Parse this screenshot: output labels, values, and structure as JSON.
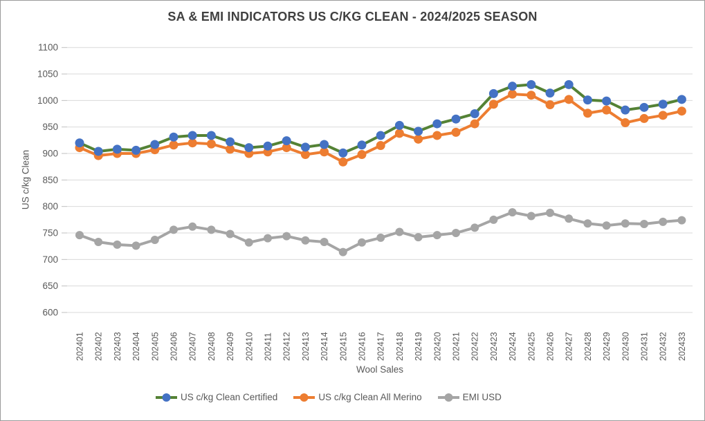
{
  "chart_data": {
    "type": "line",
    "title": "SA & EMI INDICATORS US C/KG CLEAN - 2024/2025 SEASON",
    "xlabel": "Wool Sales",
    "ylabel": "US c/kg Clean",
    "ylim": [
      600,
      1100
    ],
    "yticks": [
      600,
      650,
      700,
      750,
      800,
      850,
      900,
      950,
      1000,
      1050,
      1100
    ],
    "grid": true,
    "legend_position": "bottom",
    "categories": [
      "202401",
      "202402",
      "202403",
      "202404",
      "202405",
      "202406",
      "202407",
      "202408",
      "202409",
      "202410",
      "202411",
      "202412",
      "202413",
      "202414",
      "202415",
      "202416",
      "202417",
      "202418",
      "202419",
      "202420",
      "202421",
      "202422",
      "202423",
      "202424",
      "202425",
      "202426",
      "202427",
      "202428",
      "202429",
      "202430",
      "202431",
      "202432",
      "202433"
    ],
    "series": [
      {
        "name": "US c/kg Clean Certified",
        "line_color": "#548235",
        "marker_color": "#4472C4",
        "values": [
          920,
          904,
          908,
          906,
          917,
          931,
          934,
          934,
          922,
          911,
          914,
          924,
          912,
          917,
          901,
          916,
          934,
          953,
          942,
          956,
          965,
          975,
          1013,
          1027,
          1030,
          1014,
          1030,
          1001,
          999,
          982,
          987,
          993,
          1002
        ]
      },
      {
        "name": "US c/kg Clean All Merino",
        "line_color": "#ED7D31",
        "marker_color": "#ED7D31",
        "values": [
          911,
          896,
          900,
          900,
          907,
          916,
          920,
          918,
          908,
          900,
          903,
          911,
          898,
          903,
          884,
          898,
          915,
          938,
          927,
          934,
          940,
          956,
          993,
          1012,
          1010,
          992,
          1002,
          976,
          982,
          958,
          966,
          972,
          980
        ]
      },
      {
        "name": "EMI USD",
        "line_color": "#A5A5A5",
        "marker_color": "#A5A5A5",
        "values": [
          746,
          733,
          728,
          726,
          737,
          756,
          762,
          756,
          748,
          732,
          740,
          744,
          736,
          733,
          714,
          732,
          741,
          752,
          742,
          746,
          750,
          760,
          775,
          789,
          782,
          788,
          777,
          768,
          764,
          768,
          767,
          771,
          774
        ]
      }
    ]
  },
  "colors": {
    "background": "#FFFFFF",
    "border": "#9A9A9A",
    "title_text": "#404040",
    "axis_text": "#595959",
    "gridline": "#D9D9D9",
    "tick": "#BFBFBF"
  }
}
